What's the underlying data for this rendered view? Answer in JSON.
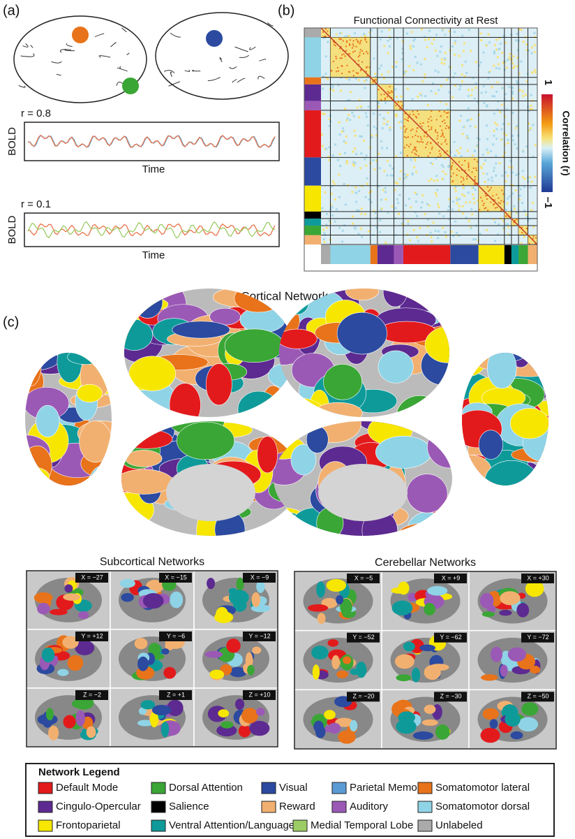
{
  "panel_a": {
    "label": "(a)",
    "pair_high": {
      "r": "r = 0.8",
      "ylabel": "BOLD",
      "xlabel": "Time"
    },
    "pair_low": {
      "r": "r = 0.1",
      "ylabel": "BOLD",
      "xlabel": "Time"
    }
  },
  "panel_b": {
    "label": "(b)",
    "title": "Functional Connectivity at Rest",
    "colorbar": {
      "max": "1",
      "min": "–1",
      "label": "Correlation (r)"
    }
  },
  "panel_c": {
    "label": "(c)",
    "cortical_title": "Cortical Networks",
    "subcortical": {
      "title": "Subcortical Networks",
      "slices": [
        "X = −27",
        "X = −15",
        "X = −9",
        "Y = +12",
        "Y = −6",
        "Y = −12",
        "Z = −2",
        "Z = +1",
        "Z = +10"
      ]
    },
    "cerebellar": {
      "title": "Cerebellar Networks",
      "slices": [
        "X = −5",
        "X = +9",
        "X = +30",
        "Y = −52",
        "Y = −62",
        "Y = −72",
        "Z = −20",
        "Z = −30",
        "Z = −50"
      ]
    }
  },
  "legend": {
    "title": "Network Legend",
    "items": [
      {
        "label": "Default Mode",
        "color": "#e31a1c"
      },
      {
        "label": "Dorsal Attention",
        "color": "#3aa635"
      },
      {
        "label": "Visual",
        "color": "#2b4aa0"
      },
      {
        "label": "Parietal Memory",
        "color": "#5b9bd5"
      },
      {
        "label": "Somatomotor lateral",
        "color": "#e8731a"
      },
      {
        "label": "Cingulo-Opercular",
        "color": "#5d2a91"
      },
      {
        "label": "Salience",
        "color": "#000000"
      },
      {
        "label": "Reward",
        "color": "#f2b070"
      },
      {
        "label": "Auditory",
        "color": "#9b59b6"
      },
      {
        "label": "Somatomotor dorsal",
        "color": "#8fd3e6"
      },
      {
        "label": "Frontoparietal",
        "color": "#f6e600"
      },
      {
        "label": "Ventral Attention/Language",
        "color": "#0f9a9a"
      },
      {
        "label": "Medial Temporal Lobe",
        "color": "#9ccc65"
      },
      {
        "label": "Unlabeled",
        "color": "#aaaaaa"
      }
    ]
  }
}
